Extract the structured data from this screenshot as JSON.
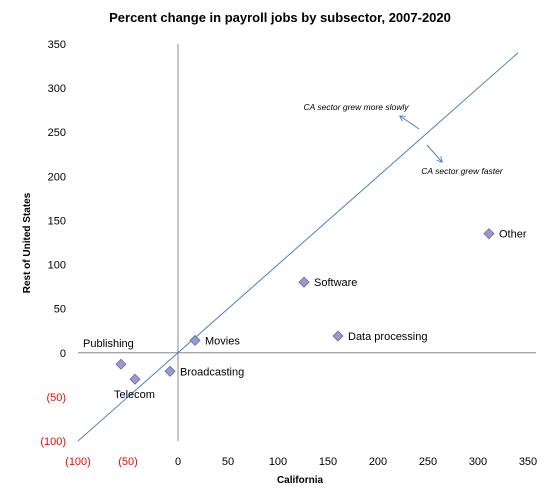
{
  "chart_data": {
    "type": "scatter",
    "title": "Percent change in payroll jobs by subsector, 2007-2020",
    "xlabel": "California",
    "ylabel": "Rest of United States",
    "xlim": [
      -100,
      350
    ],
    "ylim": [
      -100,
      350
    ],
    "xticks": [
      -100,
      -50,
      0,
      50,
      100,
      150,
      200,
      250,
      300,
      350
    ],
    "yticks": [
      -100,
      -50,
      0,
      50,
      100,
      150,
      200,
      250,
      300,
      350
    ],
    "xtick_labels": [
      "(100)",
      "(50)",
      "0",
      "50",
      "100",
      "150",
      "200",
      "250",
      "300",
      "350"
    ],
    "ytick_labels": [
      "(100)",
      "(50)",
      "0",
      "50",
      "100",
      "150",
      "200",
      "250",
      "300",
      "350"
    ],
    "negative_tick_color": "#ff0000",
    "positive_tick_color": "#000000",
    "marker_color": "#9999cc",
    "marker_stroke": "#6b6b9e",
    "line_color": "#4f81bd",
    "grid": false,
    "points": [
      {
        "label": "Publishing",
        "x": -57,
        "y": -13
      },
      {
        "label": "Telecom",
        "x": -43,
        "y": -30
      },
      {
        "label": "Broadcasting",
        "x": -8,
        "y": -21
      },
      {
        "label": "Movies",
        "x": 17,
        "y": 14
      },
      {
        "label": "Software",
        "x": 126,
        "y": 80
      },
      {
        "label": "Data processing",
        "x": 160,
        "y": 19
      },
      {
        "label": "Other",
        "x": 311,
        "y": 135
      }
    ],
    "reference_line": {
      "x": [
        -100,
        340
      ],
      "y": [
        -100,
        340
      ]
    },
    "annotations": [
      {
        "text": "CA sector grew more slowly"
      },
      {
        "text": "CA sector grew faster"
      }
    ]
  }
}
